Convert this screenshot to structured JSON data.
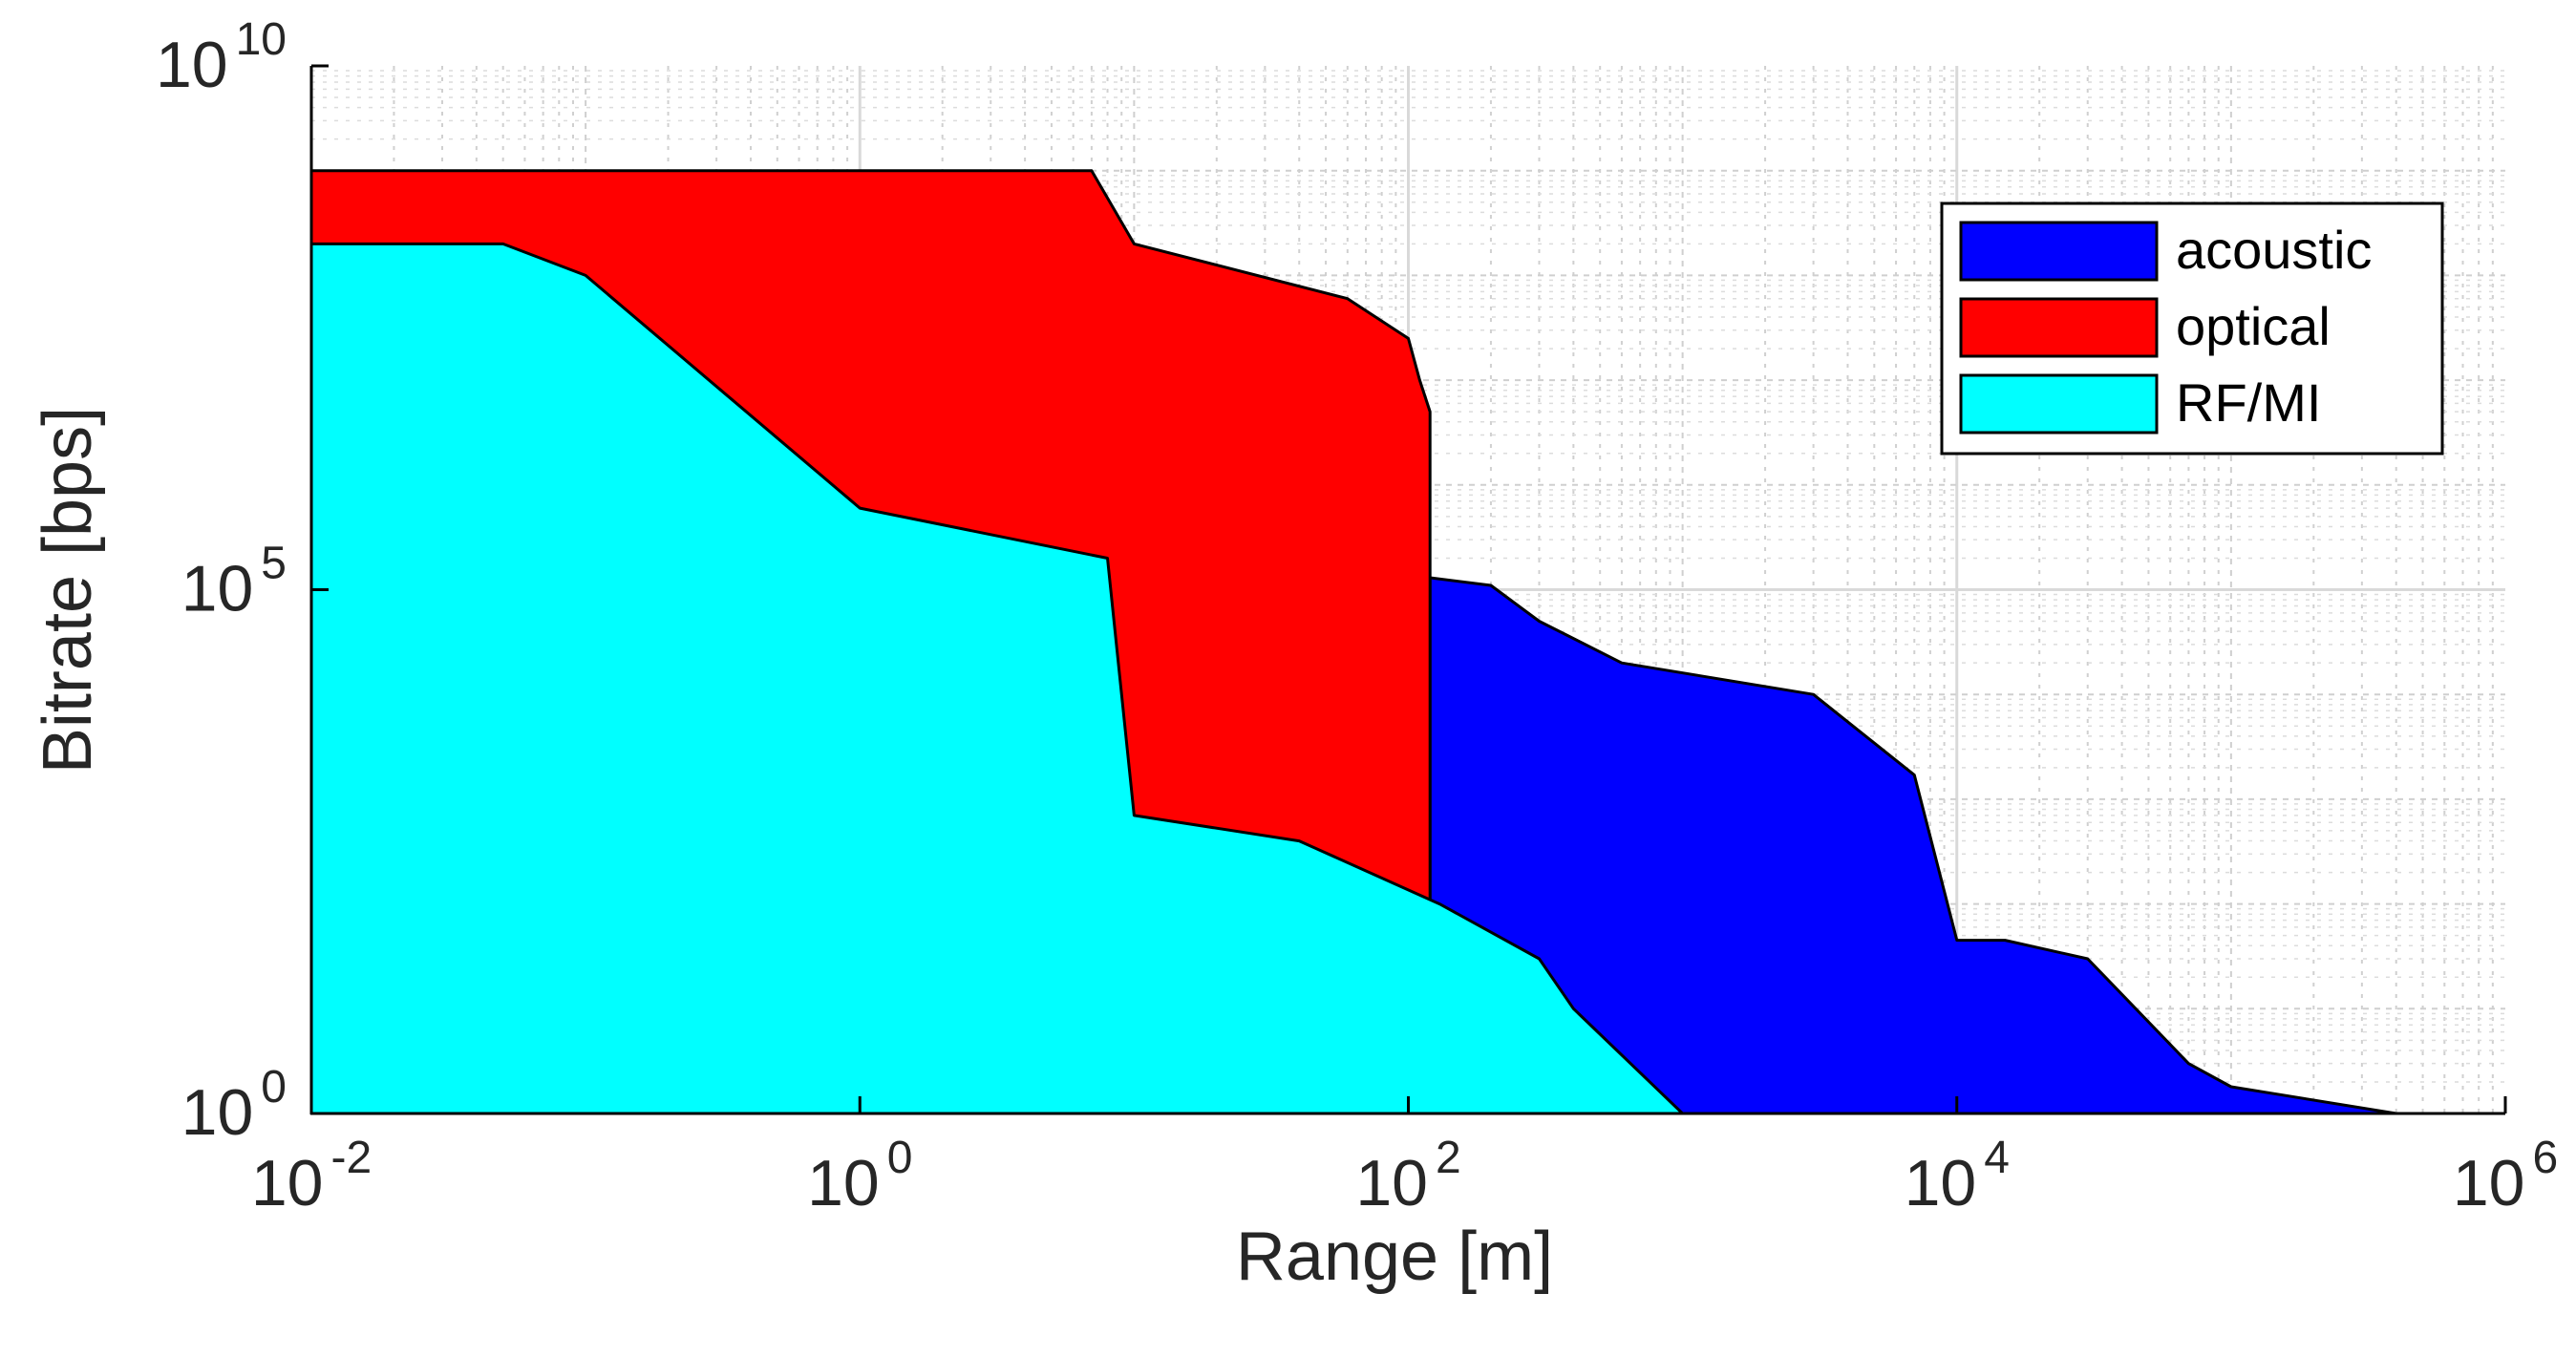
{
  "chart_data": {
    "type": "area",
    "x_scale": "log",
    "y_scale": "log",
    "xlabel": "Range [m]",
    "ylabel": "Bitrate [bps]",
    "xlim": [
      0.01,
      1000000
    ],
    "ylim": [
      1,
      10000000000
    ],
    "x_ticks": [
      {
        "value": 0.01,
        "base": "10",
        "exp": "-2"
      },
      {
        "value": 1,
        "base": "10",
        "exp": "0"
      },
      {
        "value": 100,
        "base": "10",
        "exp": "2"
      },
      {
        "value": 10000,
        "base": "10",
        "exp": "4"
      },
      {
        "value": 1000000,
        "base": "10",
        "exp": "6"
      }
    ],
    "y_ticks": [
      {
        "value": 1,
        "base": "10",
        "exp": "0"
      },
      {
        "value": 100000,
        "base": "10",
        "exp": "5"
      },
      {
        "value": 10000000000,
        "base": "10",
        "exp": "10"
      }
    ],
    "grid": true,
    "legend_position": "top-right",
    "series": [
      {
        "name": "acoustic",
        "color": "#0000FF",
        "points": [
          [
            120,
            1
          ],
          [
            120,
            130000
          ],
          [
            200,
            110000
          ],
          [
            300,
            50000
          ],
          [
            600,
            20000
          ],
          [
            3000,
            10000
          ],
          [
            7000,
            1700
          ],
          [
            10000,
            45
          ],
          [
            15000,
            45
          ],
          [
            30000,
            30
          ],
          [
            70000,
            3
          ],
          [
            100000,
            1.8
          ],
          [
            400000,
            1
          ]
        ]
      },
      {
        "name": "optical",
        "color": "#FF0000",
        "points": [
          [
            0.01,
            1
          ],
          [
            0.01,
            1000000000
          ],
          [
            7,
            1000000000
          ],
          [
            10,
            200000000
          ],
          [
            60,
            60000000
          ],
          [
            100,
            25000000
          ],
          [
            110,
            10000000
          ],
          [
            120,
            5000000
          ],
          [
            120,
            1
          ]
        ]
      },
      {
        "name": "RF/MI",
        "color": "#00FFFF",
        "points": [
          [
            0.01,
            1
          ],
          [
            0.01,
            200000000
          ],
          [
            0.05,
            200000000
          ],
          [
            0.1,
            100000000
          ],
          [
            1,
            600000
          ],
          [
            8,
            200000
          ],
          [
            10,
            700
          ],
          [
            40,
            400
          ],
          [
            130,
            100
          ],
          [
            300,
            30
          ],
          [
            400,
            10
          ],
          [
            1000,
            1
          ]
        ]
      }
    ]
  }
}
